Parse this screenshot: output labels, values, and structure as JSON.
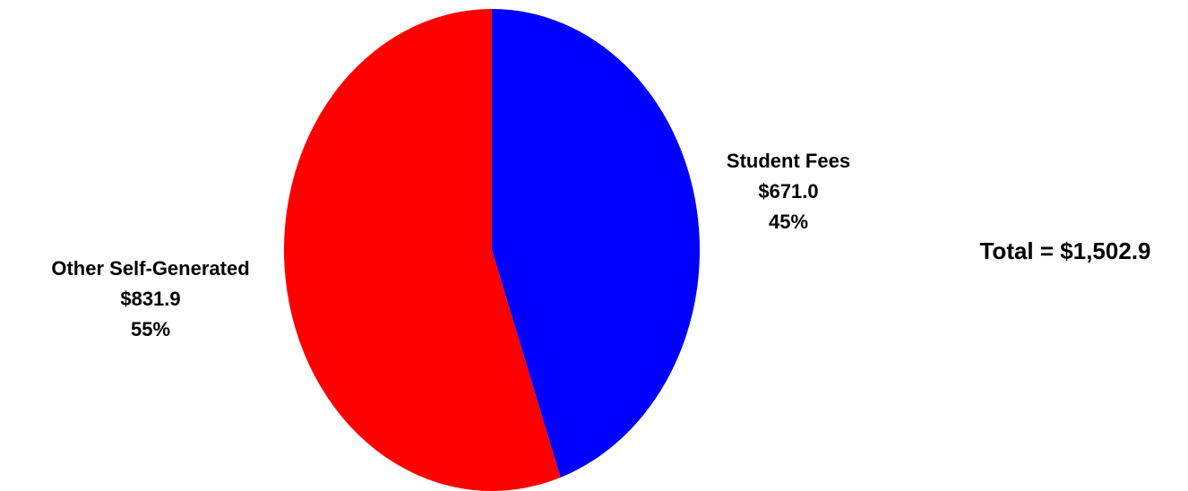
{
  "chart_data": {
    "type": "pie",
    "unit": "$",
    "slices": [
      {
        "name": "Student Fees",
        "value": 671.0,
        "value_label": "$671.0",
        "percent": 45,
        "percent_label": "45%",
        "color": "#0000ff"
      },
      {
        "name": "Other Self-Generated",
        "value": 831.9,
        "value_label": "$831.9",
        "percent": 55,
        "percent_label": "55%",
        "color": "#ff0000"
      }
    ],
    "start_angle": "12 o'clock, clockwise",
    "total_label": "Total = $1,502.9",
    "legend": "none"
  }
}
